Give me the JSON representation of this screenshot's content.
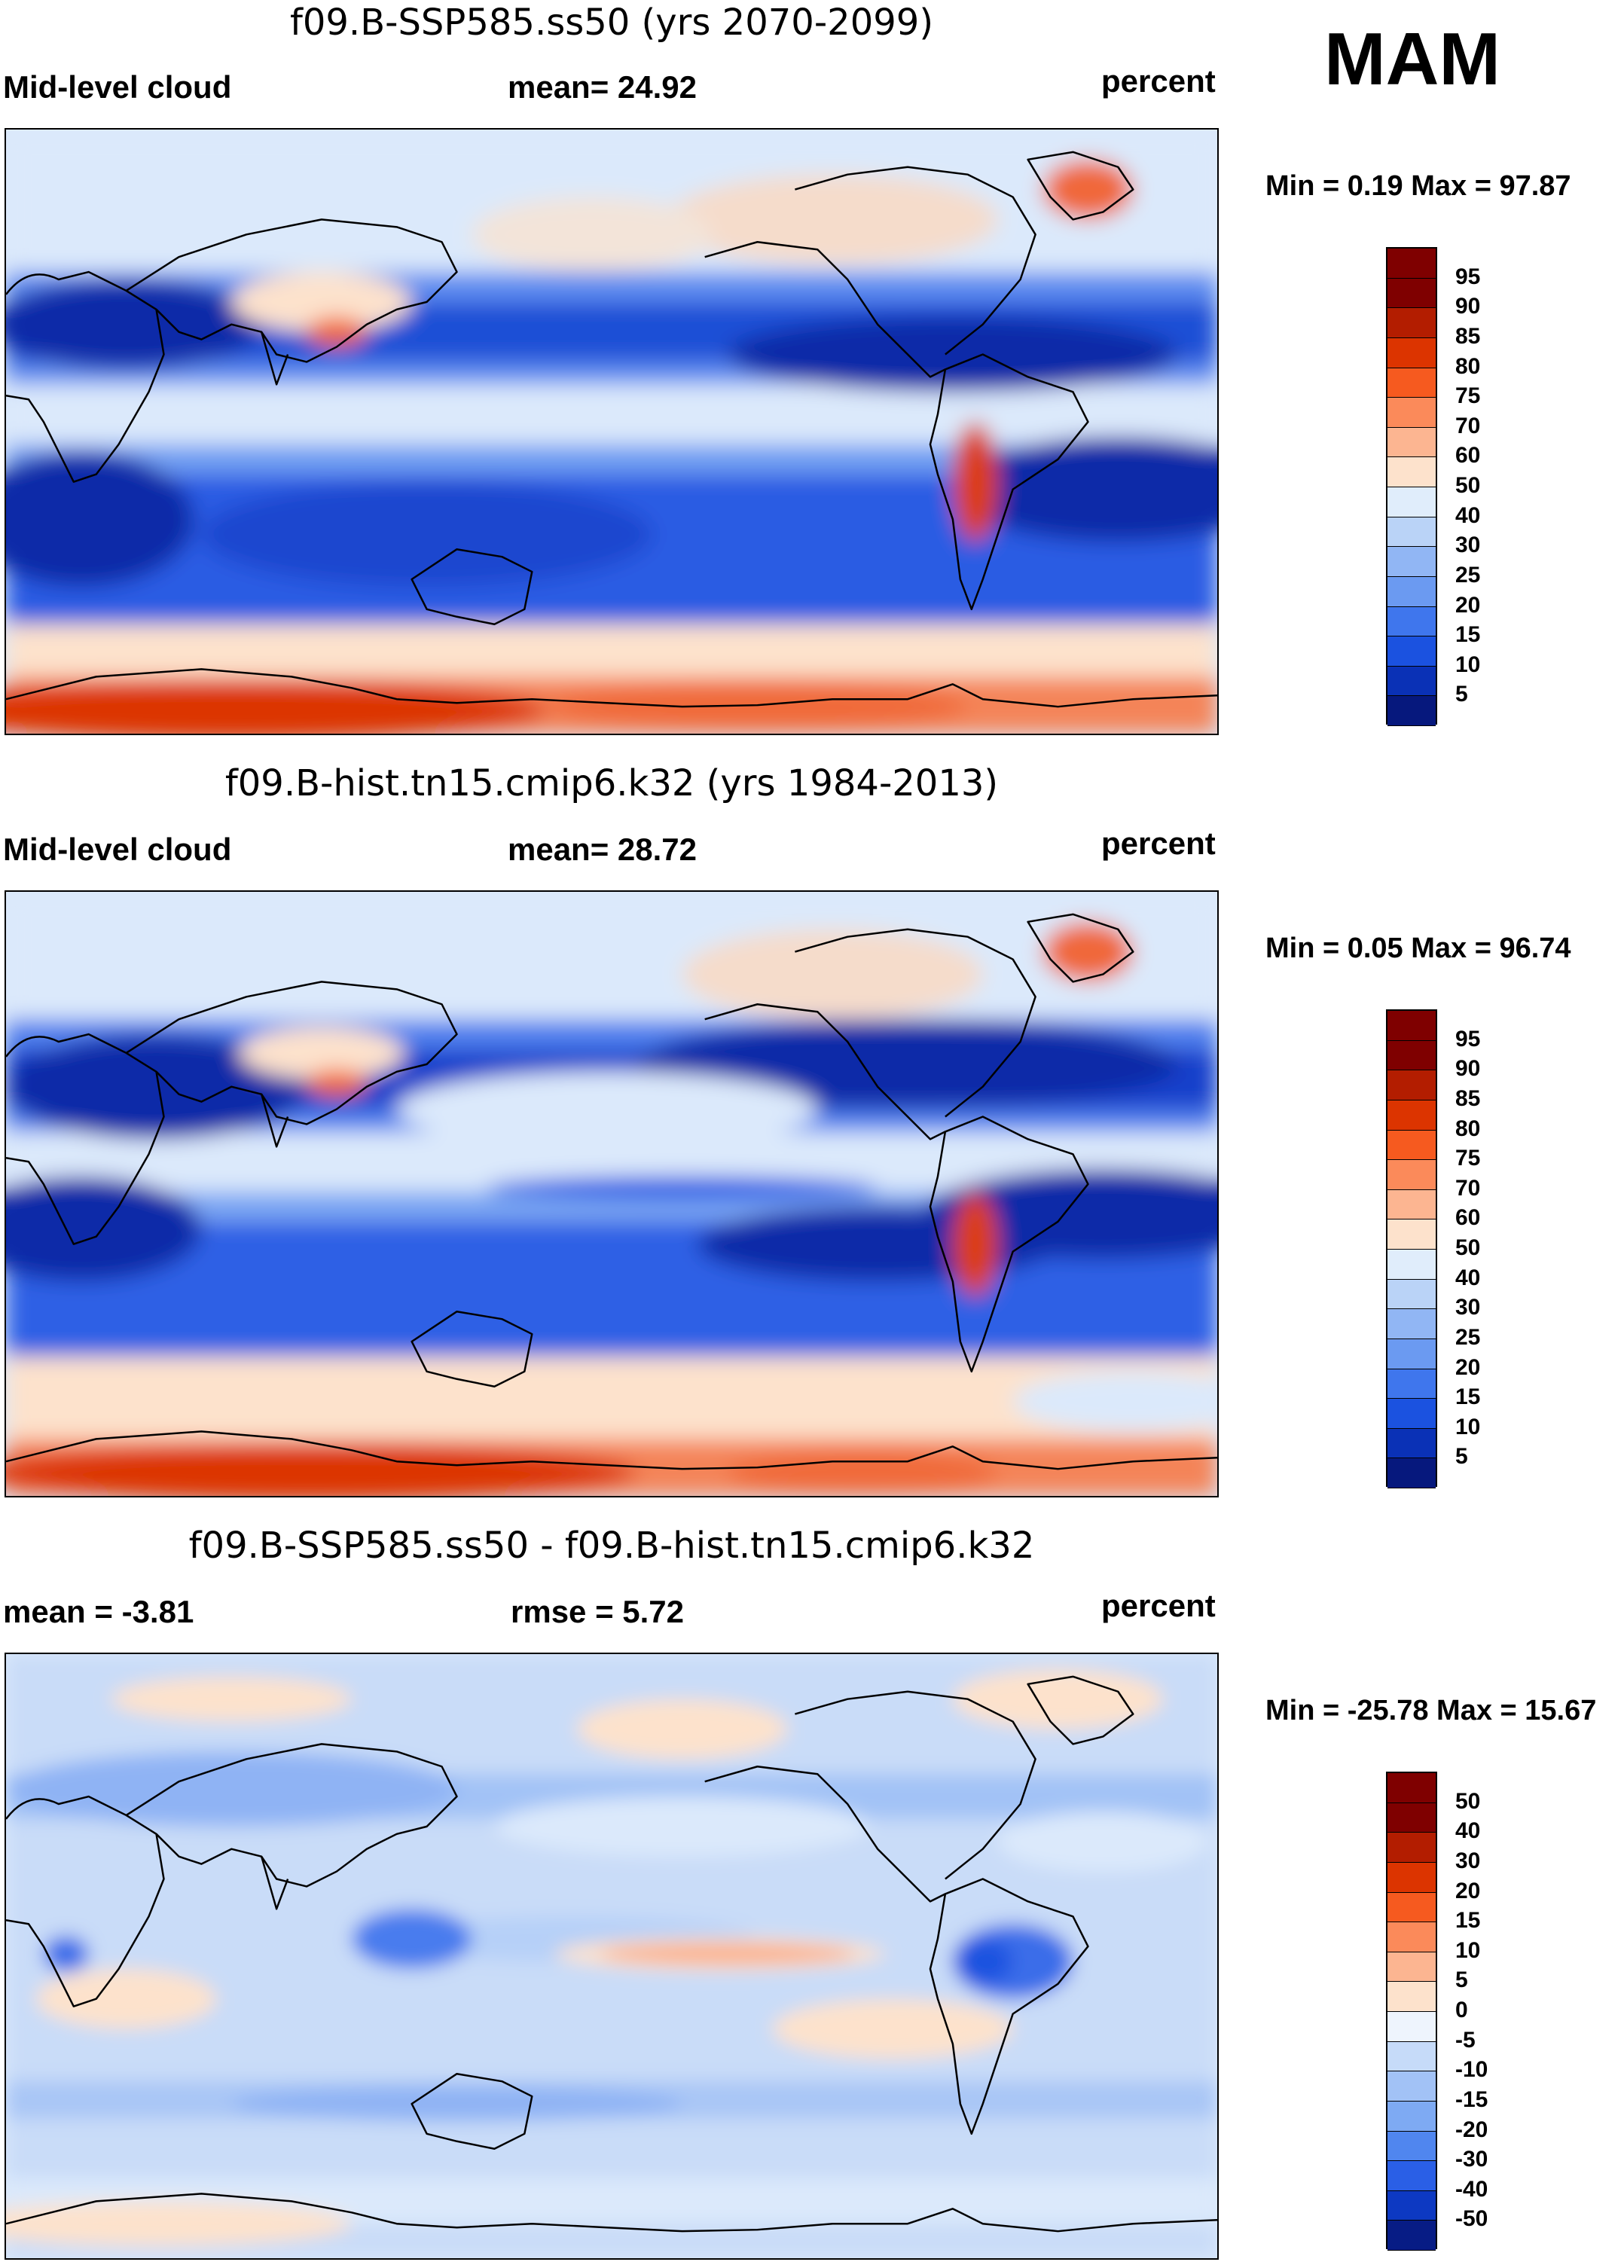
{
  "season": "MAM",
  "panels": [
    {
      "title": "f09.B-SSP585.ss50 (yrs 2070-2099)",
      "left_label": "Mid-level cloud",
      "center_label": "mean=  24.92",
      "right_label": "percent",
      "minmax": "Min =   0.19 Max =  97.87",
      "colorbar_labels": [
        "95",
        "90",
        "85",
        "80",
        "75",
        "70",
        "60",
        "50",
        "40",
        "30",
        "25",
        "20",
        "15",
        "10",
        "5"
      ],
      "colorbar_colors": [
        "#7f0000",
        "#b31d00",
        "#dc3400",
        "#f65a1f",
        "#fb8a5a",
        "#fcb591",
        "#fde2cc",
        "#e0edfb",
        "#bad3f7",
        "#91b6f4",
        "#6b9af1",
        "#3f76ed",
        "#1b52e0",
        "#0a31b6",
        "#06187d"
      ]
    },
    {
      "title": "f09.B-hist.tn15.cmip6.k32 (yrs 1984-2013)",
      "left_label": "Mid-level cloud",
      "center_label": "mean=  28.72",
      "right_label": "percent",
      "minmax": "Min =   0.05 Max =  96.74",
      "colorbar_labels": [
        "95",
        "90",
        "85",
        "80",
        "75",
        "70",
        "60",
        "50",
        "40",
        "30",
        "25",
        "20",
        "15",
        "10",
        "5"
      ],
      "colorbar_colors": [
        "#7f0000",
        "#b31d00",
        "#dc3400",
        "#f65a1f",
        "#fb8a5a",
        "#fcb591",
        "#fde2cc",
        "#e0edfb",
        "#bad3f7",
        "#91b6f4",
        "#6b9af1",
        "#3f76ed",
        "#1b52e0",
        "#0a31b6",
        "#06187d"
      ]
    },
    {
      "title": "f09.B-SSP585.ss50 - f09.B-hist.tn15.cmip6.k32",
      "left_label": "mean =  -3.81",
      "center_label": "rmse =   5.72",
      "right_label": "percent",
      "minmax": "Min = -25.78 Max =  15.67",
      "colorbar_labels": [
        "50",
        "40",
        "30",
        "20",
        "15",
        "10",
        "5",
        "0",
        "-5",
        "-10",
        "-15",
        "-20",
        "-30",
        "-40",
        "-50"
      ],
      "colorbar_colors": [
        "#7f0000",
        "#b31d00",
        "#dc3400",
        "#f65a1f",
        "#fb8a5a",
        "#fcb591",
        "#fde2cc",
        "#eef4fd",
        "#c6dbf9",
        "#a2c2f6",
        "#7eaaf3",
        "#5086ef",
        "#2a5fe6",
        "#0d39c2",
        "#071c85"
      ]
    }
  ]
}
